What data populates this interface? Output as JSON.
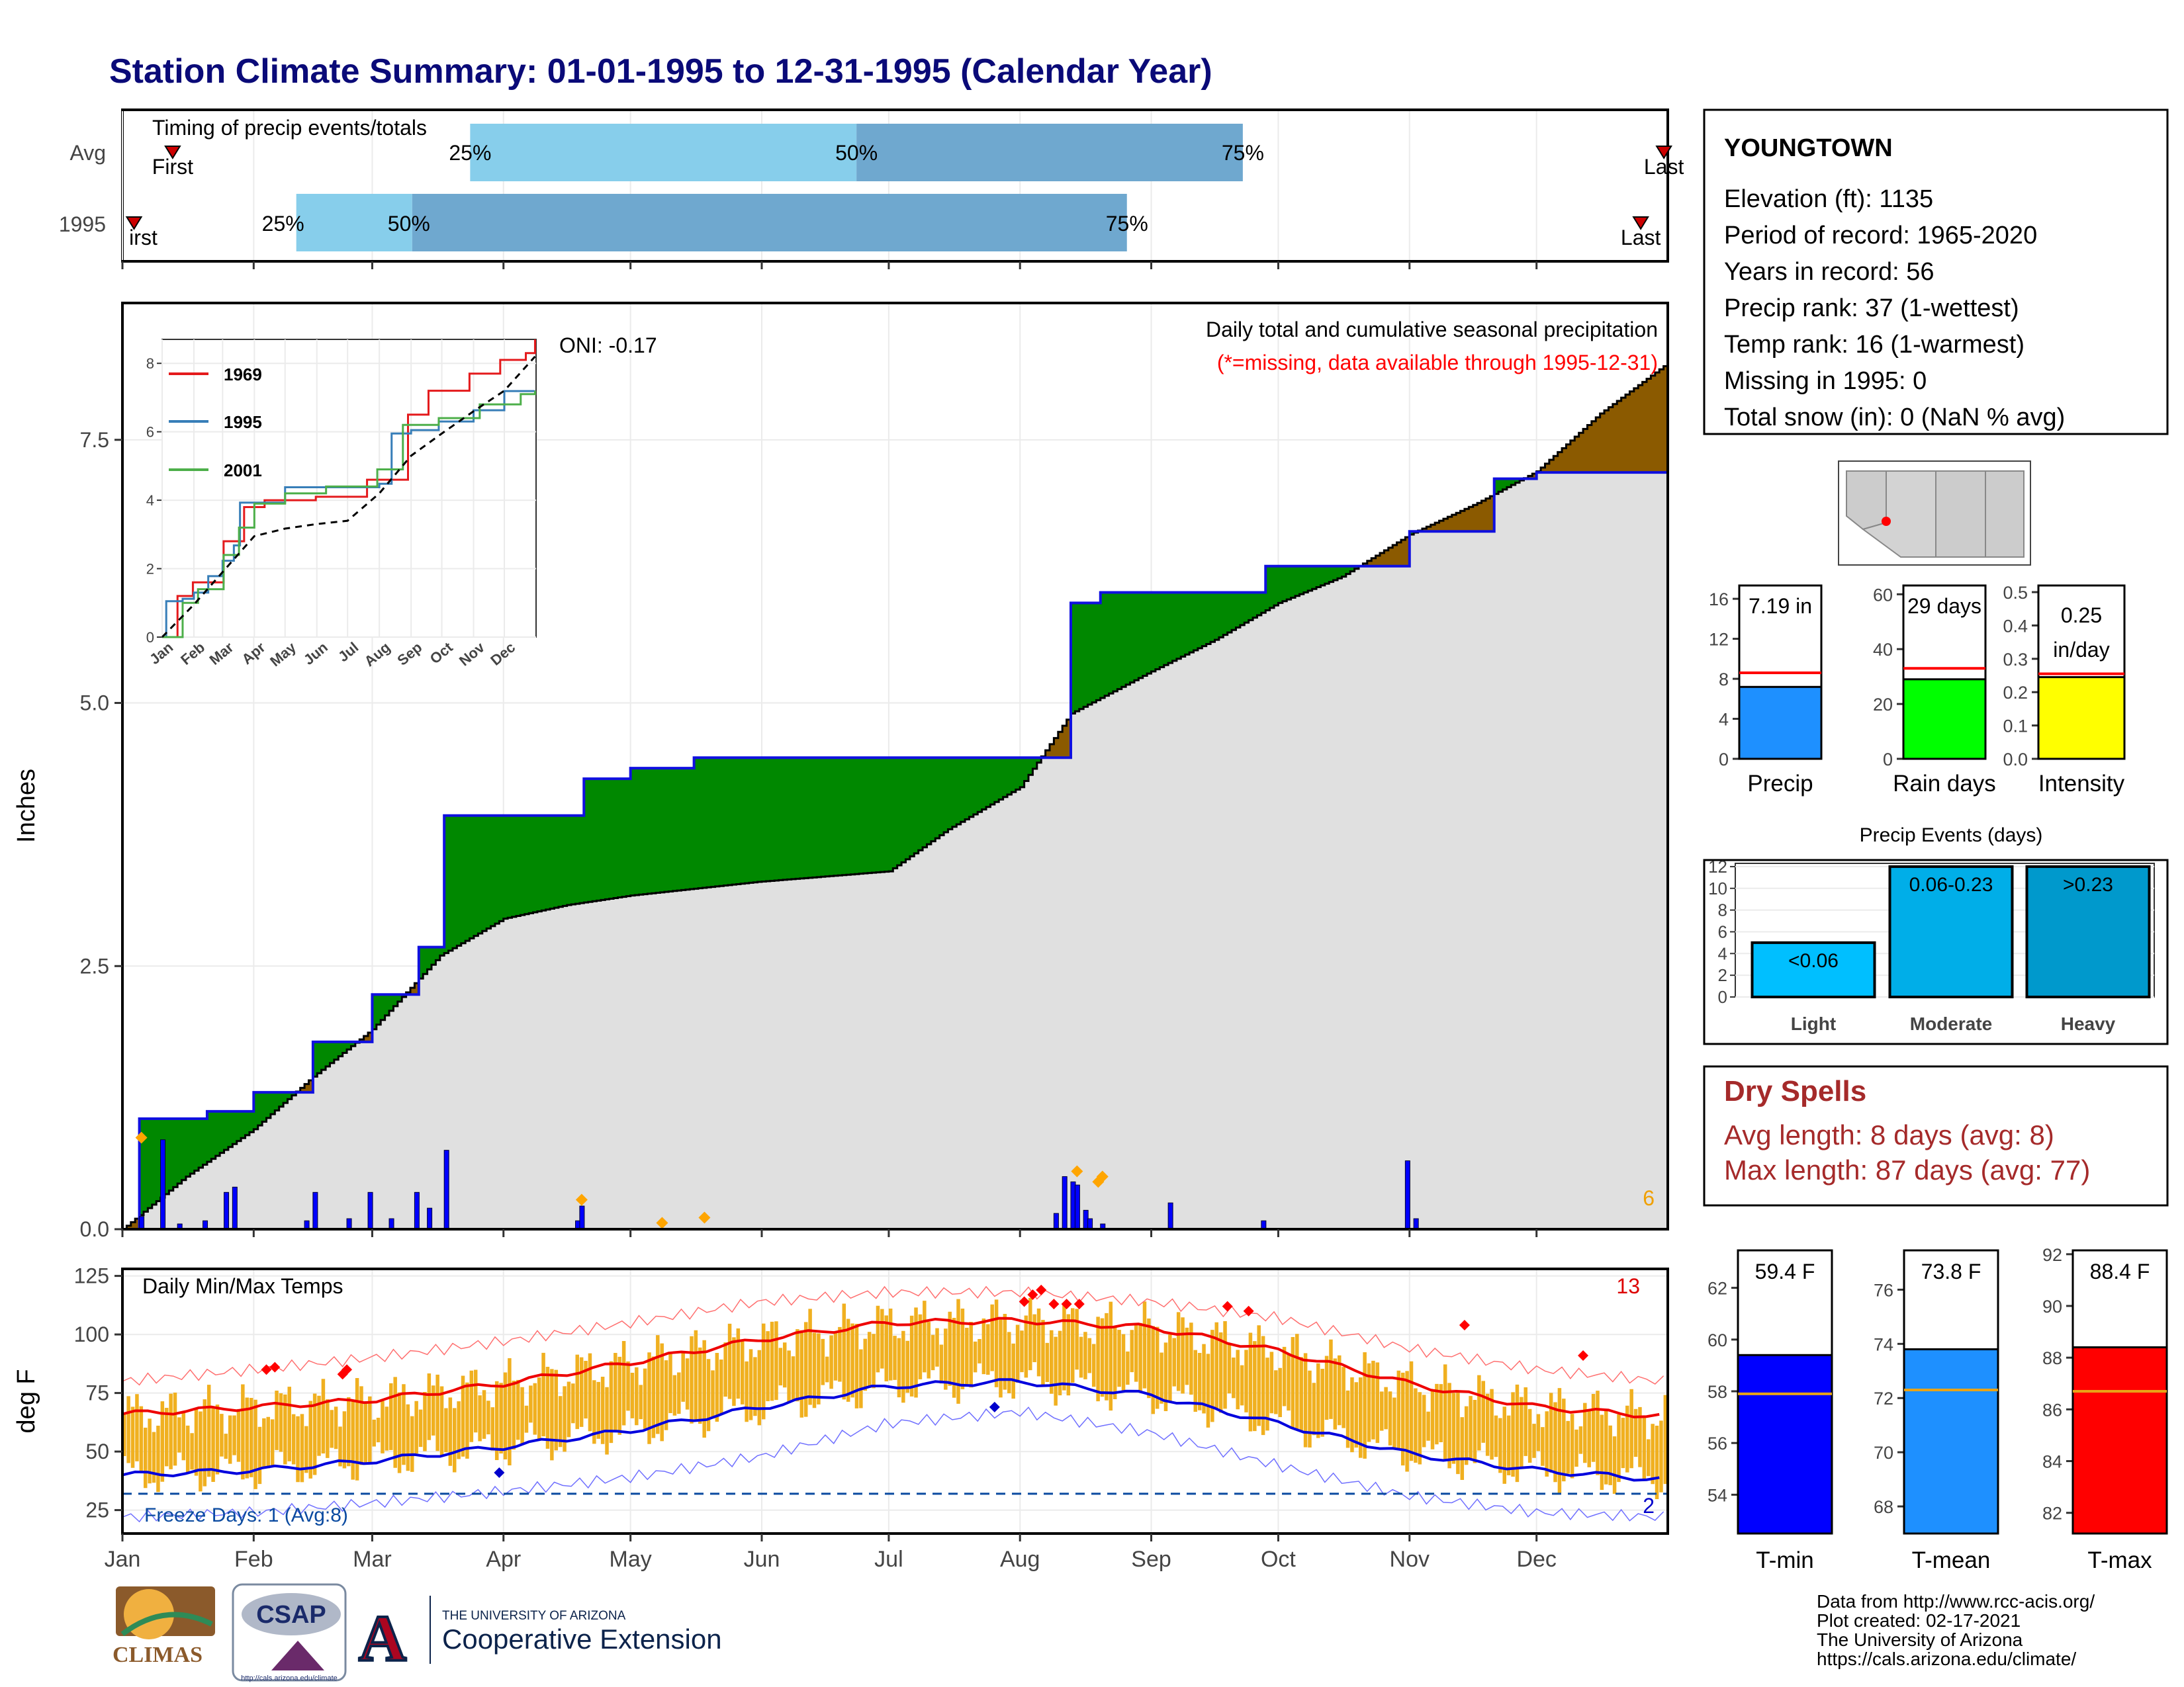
{
  "page_title": "Station Climate Summary: 01-01-1995 to 12-31-1995 (Calendar Year)",
  "colors": {
    "title": "#0a0a78",
    "gray": "#e0e0e0",
    "green": "#008800",
    "brown": "#8b5a00",
    "blue_line": "#1010e0",
    "orange": "#f0b020",
    "red": "#ff0000",
    "dark_red": "#a52a2a",
    "light_blue": "#87ceeb",
    "mid_blue": "#6fa8cf",
    "precip_blue": "#1e90ff",
    "rain_green": "#00ff00",
    "intensity_yellow": "#ffff00",
    "tmin_blue": "#0000ff",
    "tmean_blue": "#1e90ff",
    "tmax_red": "#ff0000",
    "light_event": "#00bfff",
    "moderate_event": "#00aee8",
    "heavy_event": "#0099cc"
  },
  "timing": {
    "title": "Timing of precip events/totals",
    "rows": [
      "Avg",
      "1995"
    ],
    "marker_first": "First",
    "marker_last": "Last",
    "marker_first_cut": "irst",
    "pct": [
      "25%",
      "50%",
      "75%"
    ],
    "avg": {
      "first": 0.13,
      "q25": 0.9,
      "q50": 1.9,
      "q75": 2.9,
      "last": 3.99
    },
    "y1995": {
      "first": 0.03,
      "q25": 0.45,
      "q50": 0.75,
      "q75": 2.6,
      "last": 3.93
    }
  },
  "months": [
    "Jan",
    "Feb",
    "Mar",
    "Apr",
    "May",
    "Jun",
    "Jul",
    "Aug",
    "Sep",
    "Oct",
    "Nov",
    "Dec"
  ],
  "precip_panel": {
    "ylabel": "Inches",
    "yticks": [
      "0.0",
      "2.5",
      "5.0",
      "7.5"
    ],
    "title": "Daily total and cumulative seasonal precipitation",
    "subtitle": "(*=missing, data available through 1995-12-31)",
    "oni": "ONI: -0.17",
    "count_label": "6"
  },
  "inset": {
    "yticks": [
      "0",
      "2",
      "4",
      "6",
      "8"
    ],
    "xticks": [
      "Jan",
      "Feb",
      "Mar",
      "Apr",
      "May",
      "Jun",
      "Jul",
      "Aug",
      "Sep",
      "Oct",
      "Nov",
      "Dec"
    ],
    "legend": [
      "1969",
      "1995",
      "2001"
    ]
  },
  "temp_panel": {
    "ylabel": "deg F",
    "title": "Daily Min/Max Temps",
    "yticks": [
      "25",
      "50",
      "75",
      "100",
      "125"
    ],
    "freeze_label": "Freeze Days: 1 (Avg:8)",
    "count_top": "13",
    "count_bottom": "2"
  },
  "station": {
    "name": "YOUNGTOWN",
    "lines": [
      "Elevation (ft): 1135",
      "Period of record: 1965-2020",
      "Years in record: 56",
      "Precip rank: 37 (1-wettest)",
      "Temp rank: 16 (1-warmest)",
      "Missing in 1995: 0",
      "Total snow (in): 0 (NaN % avg)"
    ]
  },
  "mini_bars": [
    {
      "label": "Precip",
      "value_text": "7.19 in",
      "value": 7.19,
      "avg": 8.6,
      "ymax": 17,
      "ticks": [
        "0",
        "4",
        "8",
        "12",
        "16"
      ],
      "tick_vals": [
        0,
        4,
        8,
        12,
        16
      ],
      "color": "#1e90ff"
    },
    {
      "label": "Rain days",
      "value_text": "29 days",
      "value": 29,
      "avg": 33,
      "ymax": 62,
      "ticks": [
        "0",
        "20",
        "40",
        "60"
      ],
      "tick_vals": [
        0,
        20,
        40,
        60
      ],
      "color": "#00ff00"
    },
    {
      "label": "Intensity",
      "value_text": "0.25 in/day",
      "value_text_1": "0.25",
      "value_text_2": "in/day",
      "value": 0.245,
      "avg": 0.255,
      "ymax": 0.51,
      "ticks": [
        "0.0",
        "0.1",
        "0.2",
        "0.3",
        "0.4",
        "0.5"
      ],
      "tick_vals": [
        0,
        0.1,
        0.2,
        0.3,
        0.4,
        0.5
      ],
      "color": "#ffff00"
    }
  ],
  "events": {
    "title": "Precip Events (days)",
    "yticks": [
      "0",
      "2",
      "4",
      "6",
      "8",
      "10",
      "12"
    ],
    "categories": [
      "Light",
      "Moderate",
      "Heavy"
    ],
    "labels": [
      "<0.06",
      "0.06-0.23",
      ">0.23"
    ],
    "values": [
      5,
      12,
      12
    ]
  },
  "dry_spells": {
    "title": "Dry Spells",
    "avg_length": "Avg length: 8 days (avg: 8)",
    "max_length": "Max length: 87 days (avg: 77)"
  },
  "temp_bars": [
    {
      "label": "T-min",
      "value_text": "59.4 F",
      "value": 59.4,
      "avg": 57.9,
      "ymin": 52.5,
      "ymax": 63.5,
      "ticks": [
        "54",
        "56",
        "58",
        "60",
        "62"
      ],
      "tick_vals": [
        54,
        56,
        58,
        60,
        62
      ],
      "color": "#0000ff"
    },
    {
      "label": "T-mean",
      "value_text": "73.8 F",
      "value": 73.8,
      "avg": 72.3,
      "ymin": 67,
      "ymax": 77.5,
      "ticks": [
        "68",
        "70",
        "72",
        "74",
        "76"
      ],
      "tick_vals": [
        68,
        70,
        72,
        74,
        76
      ],
      "color": "#1e90ff"
    },
    {
      "label": "T-max",
      "value_text": "88.4 F",
      "value": 88.4,
      "avg": 86.7,
      "ymin": 81.2,
      "ymax": 92.2,
      "ticks": [
        "82",
        "84",
        "86",
        "88",
        "90",
        "92"
      ],
      "tick_vals": [
        82,
        84,
        86,
        88,
        90,
        92
      ],
      "color": "#ff0000"
    }
  ],
  "footer": {
    "credits": [
      "Data from http://www.rcc-acis.org/",
      "Plot created: 02-17-2021",
      "The University of Arizona",
      "https://cals.arizona.edu/climate/"
    ],
    "logo_climas": "CLIMAS",
    "logo_csap": "CSAP",
    "logo_csap_url": "http://cals.arizona.edu/climate",
    "logo_ua_letter": "A",
    "logo_ua_small": "THE UNIVERSITY OF ARIZONA",
    "logo_ua_big": "Cooperative Extension"
  },
  "chart_data": [
    {
      "type": "area",
      "title": "Daily total and cumulative seasonal precipitation",
      "xlabel": "",
      "ylabel": "Inches",
      "ylim": [
        0,
        8.8
      ],
      "series": [
        {
          "name": "1995 cumulative",
          "x_day": [
            0,
            4,
            10,
            20,
            31,
            45,
            59,
            70,
            76,
            90,
            109,
            120,
            135,
            151,
            181,
            212,
            224,
            231,
            243,
            270,
            304,
            324,
            334,
            364
          ],
          "values": [
            0,
            1.05,
            1.05,
            1.12,
            1.3,
            1.78,
            2.23,
            2.68,
            3.93,
            3.93,
            4.28,
            4.38,
            4.48,
            4.48,
            4.48,
            4.48,
            5.95,
            6.05,
            6.05,
            6.3,
            6.63,
            7.13,
            7.19,
            7.19
          ]
        },
        {
          "name": "Average cumulative",
          "x_day": [
            0,
            15,
            31,
            45,
            59,
            75,
            90,
            105,
            120,
            150,
            181,
            195,
            212,
            224,
            243,
            258,
            273,
            288,
            304,
            320,
            334,
            349,
            364
          ],
          "values": [
            0,
            0.5,
            0.95,
            1.45,
            1.9,
            2.6,
            2.95,
            3.08,
            3.17,
            3.3,
            3.4,
            3.8,
            4.2,
            4.9,
            5.3,
            5.6,
            5.95,
            6.2,
            6.6,
            6.9,
            7.2,
            7.75,
            8.2
          ]
        }
      ],
      "daily_bars": {
        "x_day": [
          4,
          9,
          13,
          19,
          24,
          26,
          43,
          45,
          53,
          58,
          63,
          69,
          72,
          76,
          107,
          108,
          220,
          222,
          224,
          225,
          227,
          228,
          231,
          247,
          269,
          303,
          305
        ],
        "values": [
          0.12,
          0.85,
          0.05,
          0.08,
          0.35,
          0.4,
          0.08,
          0.35,
          0.1,
          0.35,
          0.1,
          0.35,
          0.2,
          0.75,
          0.08,
          0.22,
          0.15,
          0.5,
          0.45,
          0.42,
          0.18,
          0.1,
          0.05,
          0.25,
          0.08,
          0.65,
          0.1
        ]
      },
      "markers": {
        "x_day": [
          4,
          108,
          127,
          137,
          225,
          230,
          231
        ],
        "values": [
          0.87,
          0.28,
          0.06,
          0.11,
          0.55,
          0.45,
          0.5
        ]
      },
      "inset": {
        "type": "line",
        "ylim": [
          0,
          8.7
        ],
        "series": [
          {
            "name": "1969",
            "x_day": [
              0,
              15,
              30,
              60,
              80,
              100,
              150,
              200,
              240,
              260,
              300,
              330,
              355,
              364
            ],
            "values": [
              0,
              1.2,
              1.6,
              2.8,
              3.8,
              4.0,
              4.1,
              4.6,
              6.5,
              7.2,
              7.7,
              8.1,
              8.3,
              8.7
            ]
          },
          {
            "name": "1995",
            "x_day": [
              0,
              4,
              20,
              31,
              45,
              59,
              70,
              76,
              120,
              212,
              224,
              243,
              270,
              304,
              334,
              364
            ],
            "values": [
              0,
              1.05,
              1.12,
              1.3,
              1.78,
              2.23,
              2.68,
              3.93,
              4.38,
              4.48,
              5.95,
              6.05,
              6.3,
              6.63,
              7.19,
              7.19
            ]
          },
          {
            "name": "2001",
            "x_day": [
              0,
              20,
              35,
              60,
              75,
              90,
              120,
              160,
              210,
              235,
              270,
              310,
              350,
              364
            ],
            "values": [
              0,
              1.0,
              1.4,
              2.4,
              3.2,
              3.9,
              4.2,
              4.4,
              4.9,
              6.2,
              6.4,
              6.8,
              7.1,
              7.2
            ]
          },
          {
            "name": "Average",
            "x_day": [
              0,
              31,
              59,
              90,
              120,
              150,
              181,
              212,
              243,
              273,
              304,
              334,
              364
            ],
            "values": [
              0,
              0.95,
              1.9,
              2.95,
              3.17,
              3.3,
              3.4,
              4.2,
              5.3,
              5.95,
              6.6,
              7.2,
              8.2
            ]
          }
        ]
      }
    },
    {
      "type": "line",
      "title": "Daily Min/Max Temps",
      "ylabel": "deg F",
      "ylim": [
        15,
        128
      ],
      "series": [
        {
          "name": "Normal max",
          "x_day": [
            0,
            31,
            59,
            90,
            120,
            151,
            181,
            212,
            243,
            273,
            304,
            334,
            364
          ],
          "values": [
            66,
            69,
            72,
            79,
            88,
            98,
            105,
            106,
            103,
            93,
            79,
            69,
            65
          ]
        },
        {
          "name": "Normal min",
          "x_day": [
            0,
            31,
            59,
            90,
            120,
            151,
            181,
            212,
            243,
            273,
            304,
            334,
            364
          ],
          "values": [
            40,
            42,
            46,
            52,
            59,
            69,
            78,
            80,
            74,
            62,
            49,
            42,
            38
          ]
        },
        {
          "name": "Record max",
          "x_day": [
            0,
            31,
            59,
            90,
            120,
            151,
            181,
            212,
            243,
            273,
            304,
            334,
            364
          ],
          "values": [
            80,
            85,
            90,
            97,
            105,
            114,
            118,
            118,
            114,
            107,
            94,
            85,
            80
          ]
        },
        {
          "name": "Record min",
          "x_day": [
            0,
            31,
            59,
            90,
            120,
            151,
            181,
            212,
            243,
            273,
            304,
            334,
            364
          ],
          "values": [
            22,
            24,
            28,
            33,
            39,
            48,
            62,
            67,
            58,
            44,
            31,
            24,
            22
          ]
        }
      ],
      "freeze_line": 32
    }
  ]
}
